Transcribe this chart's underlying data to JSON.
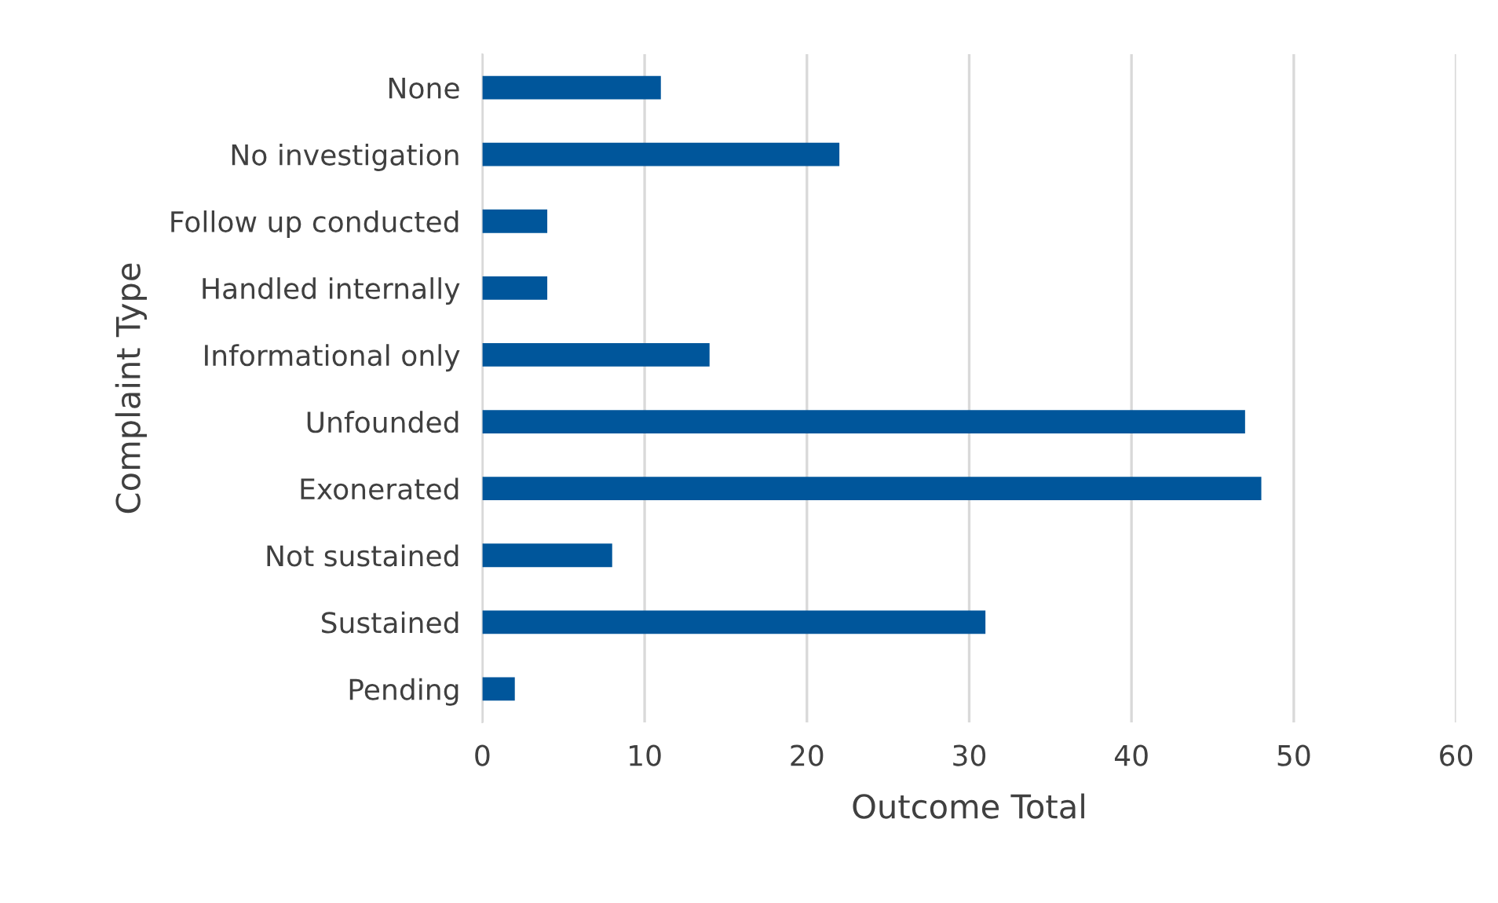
{
  "chart_data": {
    "type": "bar",
    "orientation": "horizontal",
    "xlabel": "Outcome Total",
    "ylabel": "Complaint Type",
    "categories": [
      "None",
      "No investigation",
      "Follow up conducted",
      "Handled internally",
      "Informational only",
      "Unfounded",
      "Exonerated",
      "Not sustained",
      "Sustained",
      "Pending"
    ],
    "values": [
      11,
      22,
      4,
      4,
      14,
      47,
      48,
      8,
      31,
      2
    ],
    "color": "#00569b",
    "xlim": [
      0,
      60
    ],
    "xticks": [
      0,
      10,
      20,
      30,
      40,
      50,
      60
    ],
    "grid": "x"
  }
}
